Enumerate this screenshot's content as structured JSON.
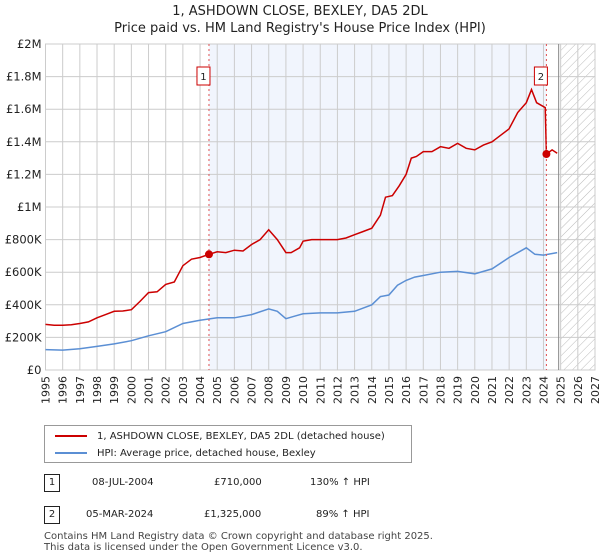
{
  "title_line1": "1, ASHDOWN CLOSE, BEXLEY, DA5 2DL",
  "title_line2": "Price paid vs. HM Land Registry's House Price Index (HPI)",
  "chart_data": {
    "type": "line",
    "title": "1, ASHDOWN CLOSE, BEXLEY, DA5 2DL — Price paid vs. HM Land Registry's House Price Index (HPI)",
    "xlim": [
      1995,
      2027
    ],
    "ylim": [
      0,
      2000000
    ],
    "x_ticks": [
      "1995",
      "1996",
      "1997",
      "1998",
      "1999",
      "2000",
      "2001",
      "2002",
      "2003",
      "2004",
      "2005",
      "2006",
      "2007",
      "2008",
      "2009",
      "2010",
      "2011",
      "2012",
      "2013",
      "2014",
      "2015",
      "2016",
      "2017",
      "2018",
      "2019",
      "2020",
      "2021",
      "2022",
      "2023",
      "2024",
      "2025",
      "2026",
      "2027"
    ],
    "y_ticks": [
      {
        "v": 0,
        "label": "£0"
      },
      {
        "v": 200000,
        "label": "£200K"
      },
      {
        "v": 400000,
        "label": "£400K"
      },
      {
        "v": 600000,
        "label": "£600K"
      },
      {
        "v": 800000,
        "label": "£800K"
      },
      {
        "v": 1000000,
        "label": "£1M"
      },
      {
        "v": 1200000,
        "label": "£1.2M"
      },
      {
        "v": 1400000,
        "label": "£1.4M"
      },
      {
        "v": 1600000,
        "label": "£1.6M"
      },
      {
        "v": 1800000,
        "label": "£1.8M"
      },
      {
        "v": 2000000,
        "label": "£2M"
      }
    ],
    "grid": true,
    "series": [
      {
        "name": "1, ASHDOWN CLOSE, BEXLEY, DA5 2DL (detached house)",
        "color": "#cc0000",
        "x": [
          1995,
          1995.5,
          1996,
          1996.5,
          1997,
          1997.5,
          1998,
          1998.5,
          1999,
          1999.5,
          2000,
          2000.5,
          2001,
          2001.5,
          2002,
          2002.5,
          2003,
          2003.5,
          2004,
          2004.52,
          2005,
          2005.5,
          2006,
          2006.5,
          2007,
          2007.5,
          2008,
          2008.5,
          2009,
          2009.3,
          2009.8,
          2010,
          2010.5,
          2011,
          2011.5,
          2012,
          2012.5,
          2013,
          2013.5,
          2014,
          2014.5,
          2014.8,
          2015.2,
          2015.6,
          2016,
          2016.3,
          2016.6,
          2017,
          2017.5,
          2018,
          2018.5,
          2019,
          2019.5,
          2020,
          2020.5,
          2021,
          2021.5,
          2022,
          2022.5,
          2023,
          2023.3,
          2023.6,
          2024.1,
          2024.17,
          2024.5,
          2024.8
        ],
        "y": [
          280000,
          275000,
          275000,
          278000,
          285000,
          295000,
          320000,
          340000,
          360000,
          362000,
          370000,
          420000,
          475000,
          480000,
          525000,
          540000,
          640000,
          680000,
          690000,
          710000,
          725000,
          720000,
          735000,
          730000,
          770000,
          800000,
          860000,
          800000,
          720000,
          720000,
          750000,
          790000,
          800000,
          800000,
          800000,
          800000,
          810000,
          830000,
          850000,
          870000,
          950000,
          1060000,
          1070000,
          1130000,
          1200000,
          1300000,
          1310000,
          1340000,
          1340000,
          1370000,
          1360000,
          1390000,
          1360000,
          1350000,
          1380000,
          1400000,
          1440000,
          1480000,
          1580000,
          1640000,
          1720000,
          1640000,
          1610000,
          1325000,
          1350000,
          1330000
        ]
      },
      {
        "name": "HPI: Average price, detached house, Bexley",
        "color": "#5b8fd4",
        "x": [
          1995,
          1996,
          1997,
          1998,
          1999,
          2000,
          2001,
          2002,
          2003,
          2004,
          2005,
          2006,
          2007,
          2008,
          2008.5,
          2009,
          2009.5,
          2010,
          2011,
          2012,
          2013,
          2014,
          2014.5,
          2015,
          2015.5,
          2016,
          2016.5,
          2017,
          2018,
          2019,
          2020,
          2021,
          2022,
          2023,
          2023.5,
          2024,
          2024.8
        ],
        "y": [
          125000,
          122000,
          130000,
          145000,
          160000,
          180000,
          210000,
          235000,
          285000,
          305000,
          320000,
          320000,
          340000,
          375000,
          360000,
          315000,
          330000,
          345000,
          350000,
          350000,
          360000,
          400000,
          450000,
          460000,
          520000,
          550000,
          570000,
          580000,
          600000,
          605000,
          590000,
          620000,
          690000,
          750000,
          710000,
          705000,
          720000
        ]
      }
    ],
    "annotations": [
      {
        "label": "1",
        "x": 2004.52,
        "y": 710000
      },
      {
        "label": "2",
        "x": 2024.17,
        "y": 1325000
      }
    ],
    "shaded_range": [
      2004.52,
      2024.17
    ],
    "forecast_hatch_from": 2025
  },
  "legend": {
    "property": "1, ASHDOWN CLOSE, BEXLEY, DA5 2DL (detached house)",
    "hpi": "HPI: Average price, detached house, Bexley"
  },
  "transactions": [
    {
      "num": "1",
      "date": "08-JUL-2004",
      "price": "£710,000",
      "hpi": "130% ↑ HPI"
    },
    {
      "num": "2",
      "date": "05-MAR-2024",
      "price": "£1,325,000",
      "hpi": "89% ↑ HPI"
    }
  ],
  "footer": {
    "line1": "Contains HM Land Registry data © Crown copyright and database right 2025.",
    "line2": "This data is licensed under the Open Government Licence v3.0."
  }
}
